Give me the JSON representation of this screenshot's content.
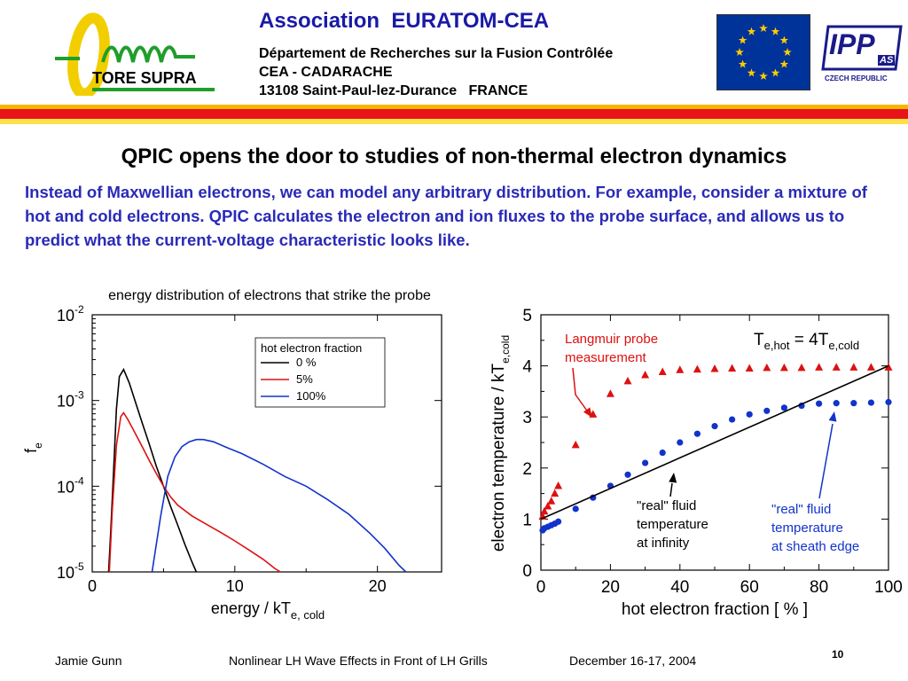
{
  "header": {
    "logo_text": "TORE SUPRA",
    "org": "Association  EURATOM-CEA",
    "lines": [
      "Département de Recherches sur la Fusion Contrôlée",
      "CEA - CADARACHE",
      "13108 Saint-Paul-lez-Durance   FRANCE"
    ],
    "ipp_logo": "IPP",
    "ipp_as": "AS",
    "ipp_country": "CZECH REPUBLIC"
  },
  "title": "QPIC opens the door to studies of non-thermal electron dynamics",
  "intro": "Instead of Maxwellian electrons, we can model any arbitrary distribution. For example, consider a mixture of hot and cold electrons. QPIC calculates the electron and ion fluxes to the probe surface, and allows us to predict what the current-voltage characteristic looks like.",
  "footer": {
    "author": "Jamie Gunn",
    "talk": "Nonlinear LH Wave Effects in Front of LH Grills",
    "date": "December 16-17, 2004",
    "page": "10"
  },
  "chart_data": [
    {
      "type": "line",
      "title": "energy distribution of electrons that strike the probe",
      "xlabel": "energy / kT",
      "xlabel_sub": "e, cold",
      "ylabel": "f",
      "ylabel_sub": "e",
      "xlim": [
        0,
        24.5
      ],
      "ylim": [
        1e-05,
        0.01
      ],
      "yscale": "log",
      "xticks": [
        "0",
        "10",
        "20"
      ],
      "yticks": [
        {
          "base": "10",
          "exp": "-2"
        },
        {
          "base": "10",
          "exp": "-3"
        },
        {
          "base": "10",
          "exp": "-4"
        },
        {
          "base": "10",
          "exp": "-5"
        }
      ],
      "legend_title": "hot electron fraction",
      "legend_position": "top-right",
      "series": [
        {
          "name": "0 %",
          "color": "#000000",
          "x": [
            1.15,
            1.3,
            1.5,
            1.7,
            1.9,
            2.2,
            2.6,
            3.0,
            3.5,
            4.0,
            4.5,
            5.0,
            5.5,
            6.0,
            6.5,
            7.0,
            7.3
          ],
          "y": [
            1e-05,
            3e-05,
            0.00015,
            0.0008,
            0.0019,
            0.0023,
            0.0016,
            0.001,
            0.00055,
            0.00031,
            0.00017,
            0.0001,
            5.8e-05,
            3.5e-05,
            2.1e-05,
            1.3e-05,
            1e-05
          ]
        },
        {
          "name": "5%",
          "color": "#dd1111",
          "x": [
            1.2,
            1.4,
            1.7,
            2.0,
            2.2,
            2.5,
            3.0,
            3.5,
            4.0,
            4.5,
            5.0,
            5.5,
            6.0,
            7.0,
            8.0,
            9.0,
            10.0,
            11.0,
            12.0,
            12.8,
            13.2
          ],
          "y": [
            1e-05,
            5e-05,
            0.0003,
            0.00065,
            0.00072,
            0.0006,
            0.00042,
            0.00029,
            0.0002,
            0.00014,
            0.0001,
            7.5e-05,
            6e-05,
            4.5e-05,
            3.6e-05,
            2.9e-05,
            2.3e-05,
            1.8e-05,
            1.4e-05,
            1.1e-05,
            1e-05
          ]
        },
        {
          "name": "100%",
          "color": "#1133cc",
          "x": [
            4.2,
            4.8,
            5.3,
            5.8,
            6.3,
            6.8,
            7.3,
            7.8,
            8.5,
            9.5,
            10.5,
            12.0,
            13.5,
            15.0,
            16.5,
            18.0,
            19.5,
            20.5,
            21.5,
            22.0
          ],
          "y": [
            1e-05,
            4.5e-05,
            0.00013,
            0.00022,
            0.00029,
            0.00033,
            0.00035,
            0.00035,
            0.00033,
            0.00028,
            0.00024,
            0.00018,
            0.00013,
            0.0001,
            7e-05,
            4.7e-05,
            2.8e-05,
            1.9e-05,
            1.2e-05,
            1e-05
          ]
        }
      ]
    },
    {
      "type": "scatter",
      "xlabel": "hot electron fraction  [ % ]",
      "ylabel": "electron temperature / kT",
      "ylabel_sub": "e,cold",
      "xlim": [
        0,
        100
      ],
      "ylim": [
        0,
        5
      ],
      "xticks": [
        "0",
        "20",
        "40",
        "60",
        "80",
        "100"
      ],
      "yticks": [
        "0",
        "1",
        "2",
        "3",
        "4",
        "5"
      ],
      "annotation_equation": {
        "t1": "T",
        "s1": "e,hot",
        "mid": " = 4T",
        "s2": "e,cold"
      },
      "annotations": [
        {
          "text": [
            "Langmuir probe",
            "measurement"
          ],
          "color": "#dd1111"
        },
        {
          "text": [
            "\"real\" fluid",
            "temperature",
            "at infinity"
          ],
          "color": "#000000"
        },
        {
          "text": [
            "\"real\" fluid",
            "temperature",
            "at sheath edge"
          ],
          "color": "#1133cc"
        }
      ],
      "series": [
        {
          "marker": "triangle",
          "color": "#dd1111",
          "x": [
            0.5,
            1,
            2,
            3,
            4,
            5,
            10,
            15,
            20,
            25,
            30,
            35,
            40,
            45,
            50,
            55,
            60,
            65,
            70,
            75,
            80,
            85,
            90,
            95,
            100
          ],
          "y": [
            1.05,
            1.15,
            1.25,
            1.35,
            1.5,
            1.65,
            2.45,
            3.05,
            3.45,
            3.7,
            3.82,
            3.88,
            3.92,
            3.93,
            3.94,
            3.95,
            3.95,
            3.96,
            3.96,
            3.96,
            3.97,
            3.97,
            3.97,
            3.97,
            3.97
          ]
        },
        {
          "marker": "circle",
          "color": "#1133cc",
          "x": [
            0.5,
            1,
            2,
            3,
            4,
            5,
            10,
            15,
            20,
            25,
            30,
            35,
            40,
            45,
            50,
            55,
            60,
            65,
            70,
            75,
            80,
            85,
            90,
            95,
            100
          ],
          "y": [
            0.78,
            0.82,
            0.85,
            0.88,
            0.91,
            0.95,
            1.2,
            1.42,
            1.65,
            1.87,
            2.1,
            2.3,
            2.5,
            2.67,
            2.82,
            2.95,
            3.05,
            3.12,
            3.18,
            3.22,
            3.26,
            3.27,
            3.27,
            3.28,
            3.29
          ]
        },
        {
          "marker": "line",
          "color": "#000000",
          "x": [
            0,
            100
          ],
          "y": [
            1.0,
            4.0
          ]
        }
      ]
    }
  ]
}
